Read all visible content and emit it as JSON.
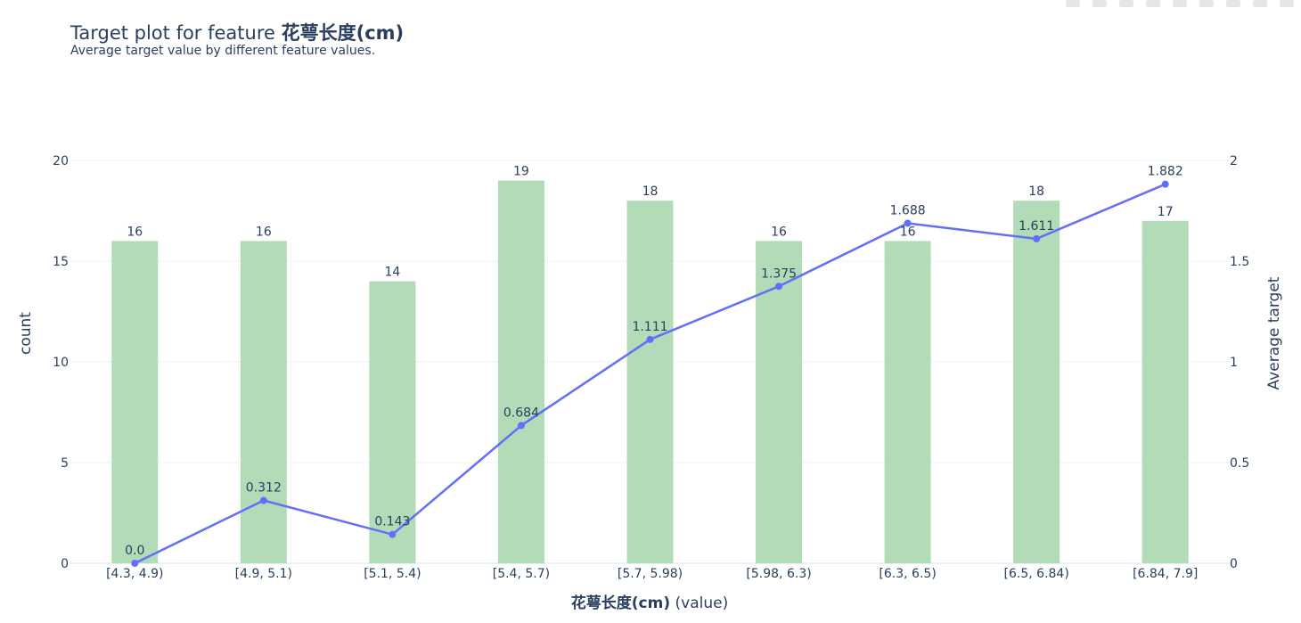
{
  "title": {
    "prefix": "Target plot for feature ",
    "feature": "花萼长度(cm)"
  },
  "subtitle": "Average target value by different feature values.",
  "modebar": {
    "icons": [
      "camera-icon",
      "zoom-icon",
      "pan-icon",
      "select-box-icon",
      "lasso-icon",
      "zoom-in-icon",
      "zoom-out-icon",
      "autoscale-icon",
      "reset-axes-icon",
      "plotly-logo-icon"
    ]
  },
  "chart_data": {
    "type": "bar",
    "categories": [
      "[4.3, 4.9)",
      "[4.9, 5.1)",
      "[5.1, 5.4)",
      "[5.4, 5.7)",
      "[5.7, 5.98)",
      "[5.98, 6.3)",
      "[6.3, 6.5)",
      "[6.5, 6.84)",
      "[6.84, 7.9]"
    ],
    "xlabel_bold": "花萼长度(cm)",
    "xlabel_suffix": " (value)",
    "series": [
      {
        "type": "bar",
        "values": [
          16,
          16,
          14,
          19,
          18,
          16,
          16,
          18,
          17
        ],
        "labels": [
          "16",
          "16",
          "14",
          "19",
          "18",
          "16",
          "16",
          "18",
          "17"
        ],
        "color": "#b2dbb7",
        "axis": "left"
      },
      {
        "type": "line",
        "values": [
          0.0,
          0.312,
          0.143,
          0.684,
          1.111,
          1.375,
          1.688,
          1.611,
          1.882
        ],
        "labels": [
          "0.0",
          "0.312",
          "0.143",
          "0.684",
          "1.111",
          "1.375",
          "1.688",
          "1.611",
          "1.882"
        ],
        "color": "#636efa",
        "axis": "right"
      }
    ],
    "ylabel_left": "count",
    "ylabel_right": "Average target",
    "ylim_left": [
      0,
      20
    ],
    "ylim_right": [
      0,
      2
    ],
    "yticks_left": [
      "0",
      "5",
      "10",
      "15",
      "20"
    ],
    "yticks_right": [
      "0",
      "0.5",
      "1",
      "1.5",
      "2"
    ],
    "grid": true,
    "gridcolor": "#ebf0f8"
  }
}
